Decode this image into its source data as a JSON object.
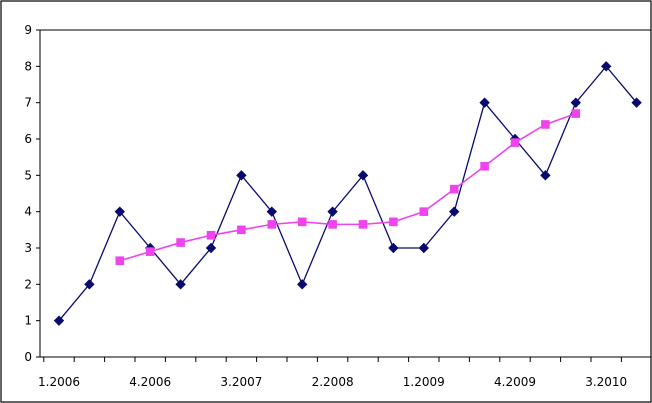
{
  "chart_data": {
    "type": "line",
    "title": "",
    "xlabel": "",
    "ylabel": "",
    "ylim": [
      0,
      9
    ],
    "yticks": [
      "0",
      "1",
      "2",
      "3",
      "4",
      "5",
      "6",
      "7",
      "8",
      "9"
    ],
    "x_tick_labels": [
      "1.2006",
      "4.2006",
      "3.2007",
      "2.2008",
      "1.2009",
      "4.2009",
      "3.2010"
    ],
    "x_tick_positions": [
      0,
      3,
      6,
      9,
      12,
      15,
      18
    ],
    "grid": false,
    "legend": "none",
    "series": [
      {
        "color": "#0a0a6e",
        "marker": "diamond",
        "x": [
          0,
          1,
          2,
          3,
          4,
          5,
          6,
          7,
          8,
          9,
          10,
          11,
          12,
          13,
          14,
          15,
          16,
          17,
          18,
          19
        ],
        "values": [
          1,
          2,
          4,
          3,
          2,
          3,
          5,
          4,
          2,
          4,
          5,
          3,
          3,
          4,
          7,
          6,
          5,
          7,
          8,
          7
        ]
      },
      {
        "color": "#ee44ee",
        "marker": "square",
        "x": [
          2,
          3,
          4,
          5,
          6,
          7,
          8,
          9,
          10,
          11,
          12,
          13,
          14,
          15,
          16,
          17
        ],
        "values": [
          2.65,
          2.9,
          3.15,
          3.35,
          3.5,
          3.65,
          3.72,
          3.65,
          3.65,
          3.72,
          4.0,
          4.62,
          5.25,
          5.9,
          6.4,
          6.7
        ]
      }
    ]
  }
}
